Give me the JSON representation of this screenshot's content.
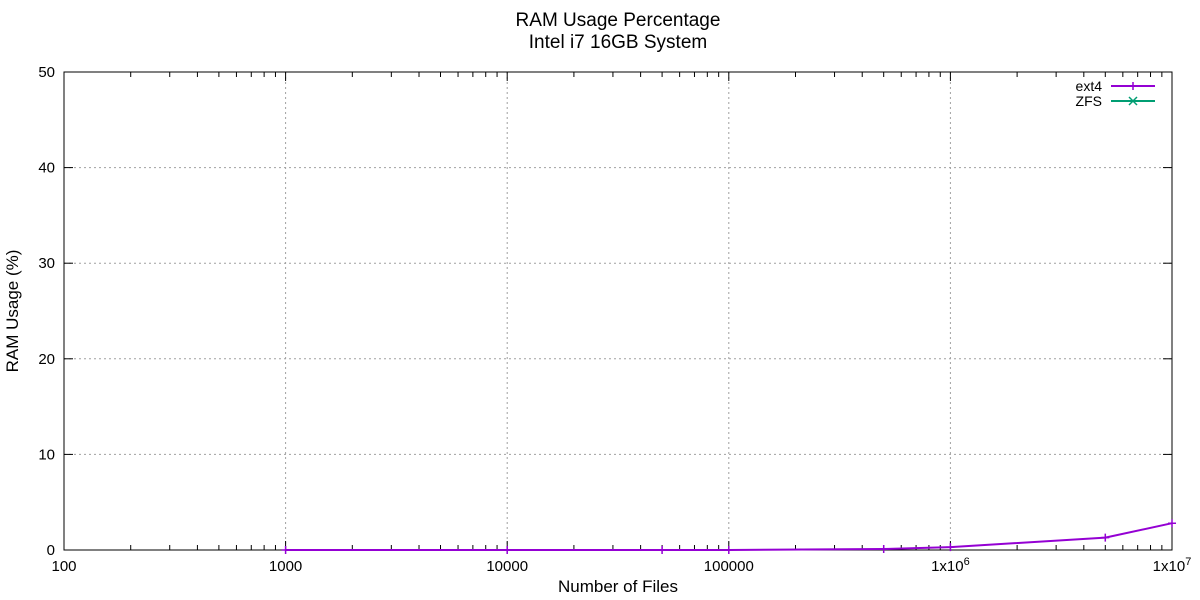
{
  "chart_data": {
    "type": "line",
    "title": "RAM Usage Percentage",
    "subtitle": "Intel i7 16GB System",
    "xlabel": "Number of Files",
    "ylabel": "RAM Usage (%)",
    "x_scale": "log",
    "xlim": [
      100,
      10000000
    ],
    "ylim": [
      0,
      50
    ],
    "x_ticks": [
      {
        "value": 100,
        "label": "100",
        "exp": ""
      },
      {
        "value": 1000,
        "label": "1000",
        "exp": ""
      },
      {
        "value": 10000,
        "label": "10000",
        "exp": ""
      },
      {
        "value": 100000,
        "label": "100000",
        "exp": ""
      },
      {
        "value": 1000000,
        "label": "1x10",
        "exp": "6"
      },
      {
        "value": 10000000,
        "label": "1x10",
        "exp": "7"
      }
    ],
    "y_ticks": [
      0,
      10,
      20,
      30,
      40,
      50
    ],
    "grid": true,
    "legend_position": "top-right",
    "series": [
      {
        "name": "ext4",
        "color": "#9400d3",
        "marker": "plus",
        "points": [
          {
            "x": 1000,
            "y": 0.0
          },
          {
            "x": 10000,
            "y": 0.0
          },
          {
            "x": 50000,
            "y": 0.0
          },
          {
            "x": 100000,
            "y": 0.0
          },
          {
            "x": 500000,
            "y": 0.1
          },
          {
            "x": 1000000,
            "y": 0.3
          },
          {
            "x": 5000000,
            "y": 1.3
          },
          {
            "x": 10000000,
            "y": 2.8
          }
        ]
      },
      {
        "name": "ZFS",
        "color": "#009e73",
        "marker": "cross",
        "points": []
      }
    ]
  }
}
